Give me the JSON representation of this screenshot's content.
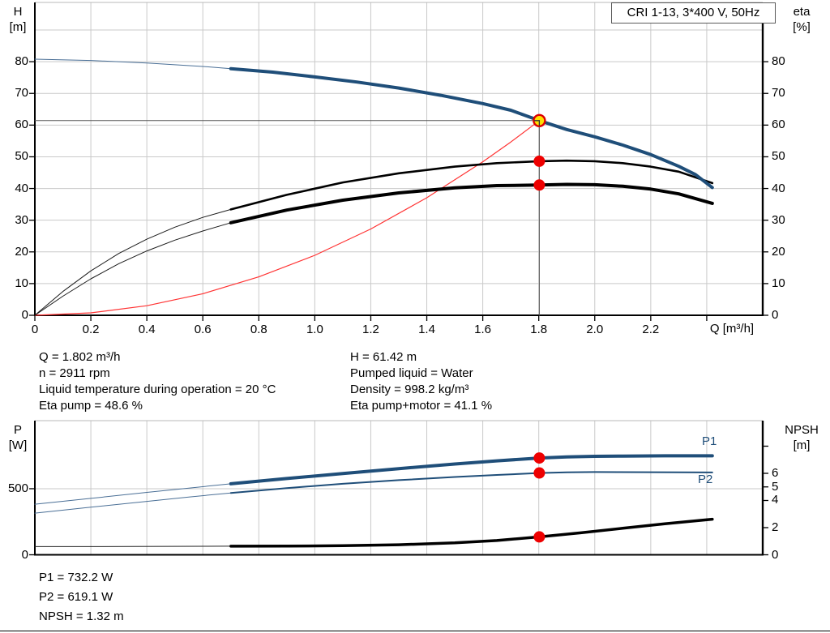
{
  "title_box": {
    "label": "CRI 1-13, 3*400 V, 50Hz"
  },
  "colors": {
    "curve_blue": "#1f4e79",
    "curve_blue_thin": "#4a6f96",
    "curve_black": "#000000",
    "system_curve_red": "#ff3333",
    "marker_dot": "#ee0000",
    "duty_point_fill": "#ffdf00",
    "duty_point_ring": "#dd0000",
    "crossline": "#555555",
    "grid": "#c9c9c9",
    "label_blue": "#1f4e79"
  },
  "annotations": {
    "operating_left": [
      "Q = 1.802 m³/h",
      "n = 2911 rpm",
      "Liquid temperature during operation = 20 °C",
      "Eta pump = 48.6 %"
    ],
    "operating_right": [
      "H = 61.42 m",
      "Pumped liquid = Water",
      "Density = 998.2 kg/m³",
      "Eta pump+motor = 41.1 %"
    ],
    "bottom": [
      "P1 = 732.2 W",
      "P2 = 619.1 W",
      "NPSH = 1.32 m"
    ]
  },
  "chart_data": [
    {
      "type": "line",
      "title": "CRI 1-13, 3*400 V, 50Hz",
      "x_axis": {
        "label": "Q [m³/h]",
        "min": 0,
        "max": 2.6,
        "ticks": [
          {
            "value": 0,
            "label": "0"
          },
          {
            "value": 0.2,
            "label": "0.2"
          },
          {
            "value": 0.4,
            "label": "0.4"
          },
          {
            "value": 0.6,
            "label": "0.6"
          },
          {
            "value": 0.8,
            "label": "0.8"
          },
          {
            "value": 1.0,
            "label": "1.0"
          },
          {
            "value": 1.2,
            "label": "1.2"
          },
          {
            "value": 1.4,
            "label": "1.4"
          },
          {
            "value": 1.6,
            "label": "1.6"
          },
          {
            "value": 1.8,
            "label": "1.8"
          },
          {
            "value": 2.0,
            "label": "2.0"
          },
          {
            "value": 2.2,
            "label": "2.2"
          },
          {
            "value": 2.4,
            "label": ""
          }
        ],
        "grid_values": [
          0.2,
          0.4,
          0.6,
          0.8,
          1.0,
          1.2,
          1.4,
          1.6,
          1.8,
          2.0,
          2.2,
          2.4
        ]
      },
      "y_axis_left": {
        "label": "H",
        "unit": "[m]",
        "min": 0,
        "max": 98.7,
        "ticks": [
          {
            "value": 0,
            "label": "0"
          },
          {
            "value": 10,
            "label": "10"
          },
          {
            "value": 20,
            "label": "20"
          },
          {
            "value": 30,
            "label": "30"
          },
          {
            "value": 40,
            "label": "40"
          },
          {
            "value": 50,
            "label": "50"
          },
          {
            "value": 60,
            "label": "60"
          },
          {
            "value": 70,
            "label": "70"
          },
          {
            "value": 80,
            "label": "80"
          }
        ],
        "grid_values": [
          10,
          20,
          30,
          40,
          50,
          60,
          70,
          80,
          90
        ]
      },
      "y_axis_right": {
        "label": "eta",
        "unit": "[%]",
        "min": 0,
        "max": 98.7,
        "ticks": [
          {
            "value": 0,
            "label": "0"
          },
          {
            "value": 10,
            "label": "10"
          },
          {
            "value": 20,
            "label": "20"
          },
          {
            "value": 30,
            "label": "30"
          },
          {
            "value": 40,
            "label": "40"
          },
          {
            "value": 50,
            "label": "50"
          },
          {
            "value": 60,
            "label": "60"
          },
          {
            "value": 70,
            "label": "70"
          },
          {
            "value": 80,
            "label": "80"
          }
        ]
      },
      "duty_point": {
        "Q": 1.802,
        "H": 61.42
      },
      "series": [
        {
          "name": "h-crossline",
          "color": "#555555",
          "width": 1,
          "axis": "left",
          "points": [
            [
              0,
              61.42
            ],
            [
              1.802,
              61.42
            ]
          ]
        },
        {
          "name": "q-crossline",
          "color": "#555555",
          "width": 1,
          "axis": "left",
          "points": [
            [
              1.802,
              0
            ],
            [
              1.802,
              61.42
            ]
          ]
        },
        {
          "name": "system-curve",
          "color": "#ff3333",
          "width": 1.2,
          "axis": "left",
          "points": [
            [
              0,
              0
            ],
            [
              0.2,
              0.76
            ],
            [
              0.4,
              3.03
            ],
            [
              0.6,
              6.81
            ],
            [
              0.8,
              12.11
            ],
            [
              1.0,
              18.92
            ],
            [
              1.2,
              27.24
            ],
            [
              1.4,
              37.08
            ],
            [
              1.6,
              48.43
            ],
            [
              1.7,
              54.68
            ],
            [
              1.802,
              61.42
            ]
          ]
        },
        {
          "name": "qh-curve-extension",
          "color": "#4a6f96",
          "width": 1,
          "axis": "left",
          "points": [
            [
              0,
              80.8
            ],
            [
              0.2,
              80.4
            ],
            [
              0.4,
              79.6
            ],
            [
              0.6,
              78.5
            ],
            [
              0.7,
              77.8
            ]
          ]
        },
        {
          "name": "eta-pump-curve-extension",
          "color": "#1a1a1a",
          "width": 1,
          "axis": "left",
          "points": [
            [
              0,
              0
            ],
            [
              0.1,
              7.5
            ],
            [
              0.2,
              14
            ],
            [
              0.3,
              19.5
            ],
            [
              0.4,
              24
            ],
            [
              0.5,
              27.8
            ],
            [
              0.6,
              30.9
            ],
            [
              0.7,
              33.4
            ]
          ]
        },
        {
          "name": "eta-pump-motor-curve-extension",
          "color": "#1a1a1a",
          "width": 1,
          "axis": "left",
          "points": [
            [
              0,
              0
            ],
            [
              0.1,
              6
            ],
            [
              0.2,
              11.5
            ],
            [
              0.3,
              16.3
            ],
            [
              0.4,
              20.3
            ],
            [
              0.5,
              23.7
            ],
            [
              0.6,
              26.6
            ],
            [
              0.7,
              29.2
            ]
          ]
        },
        {
          "name": "eta-pump-curve",
          "color": "#000000",
          "width": 2.6,
          "axis": "left",
          "points": [
            [
              0.7,
              33.4
            ],
            [
              0.9,
              38.0
            ],
            [
              1.1,
              41.9
            ],
            [
              1.3,
              44.8
            ],
            [
              1.5,
              46.9
            ],
            [
              1.65,
              48.0
            ],
            [
              1.802,
              48.6
            ],
            [
              1.9,
              48.8
            ],
            [
              2.0,
              48.6
            ],
            [
              2.1,
              48.0
            ],
            [
              2.2,
              46.9
            ],
            [
              2.3,
              45.3
            ],
            [
              2.42,
              41.7
            ]
          ]
        },
        {
          "name": "eta-pump-motor-curve",
          "color": "#000000",
          "width": 4,
          "axis": "left",
          "points": [
            [
              0.7,
              29.2
            ],
            [
              0.9,
              33.2
            ],
            [
              1.1,
              36.3
            ],
            [
              1.3,
              38.6
            ],
            [
              1.5,
              40.2
            ],
            [
              1.65,
              40.9
            ],
            [
              1.802,
              41.1
            ],
            [
              1.9,
              41.3
            ],
            [
              2.0,
              41.2
            ],
            [
              2.1,
              40.7
            ],
            [
              2.2,
              39.8
            ],
            [
              2.3,
              38.3
            ],
            [
              2.42,
              35.3
            ]
          ]
        },
        {
          "name": "qh-curve",
          "color": "#1f4e79",
          "width": 4,
          "axis": "left",
          "points": [
            [
              0.7,
              77.8
            ],
            [
              0.85,
              76.7
            ],
            [
              1.0,
              75.2
            ],
            [
              1.15,
              73.6
            ],
            [
              1.3,
              71.7
            ],
            [
              1.45,
              69.4
            ],
            [
              1.6,
              66.8
            ],
            [
              1.7,
              64.7
            ],
            [
              1.802,
              61.42
            ],
            [
              1.9,
              58.6
            ],
            [
              2.0,
              56.3
            ],
            [
              2.1,
              53.7
            ],
            [
              2.2,
              50.7
            ],
            [
              2.3,
              47.0
            ],
            [
              2.36,
              44.4
            ],
            [
              2.42,
              40.3
            ]
          ]
        }
      ],
      "markers": [
        {
          "type": "dot",
          "x": 1.802,
          "y": 48.6,
          "axis": "left"
        },
        {
          "type": "dot",
          "x": 1.802,
          "y": 41.1,
          "axis": "left"
        },
        {
          "type": "duty",
          "x": 1.802,
          "y": 61.42,
          "axis": "left"
        }
      ]
    },
    {
      "type": "line",
      "x_axis": {
        "label": "",
        "min": 0,
        "max": 2.6,
        "ticks": [],
        "grid_values": [
          0.2,
          0.4,
          0.6,
          0.8,
          1.0,
          1.2,
          1.4,
          1.6,
          1.8,
          2.0,
          2.2,
          2.4
        ]
      },
      "y_axis_left": {
        "label": "P",
        "unit": "[W]",
        "min": 0,
        "max": 1015,
        "ticks": [
          {
            "value": 500,
            "label": "500"
          },
          {
            "value": 0,
            "label": "0"
          }
        ],
        "grid_values": [
          500
        ]
      },
      "y_axis_right": {
        "label": "NPSH",
        "unit": "[m]",
        "min": 0,
        "max": 9.88,
        "ticks": [
          {
            "value": 0,
            "label": "0"
          },
          {
            "value": 2,
            "label": "2"
          },
          {
            "value": 4,
            "label": "4"
          },
          {
            "value": 5,
            "label": "5"
          },
          {
            "value": 6,
            "label": "6"
          },
          {
            "value": 8,
            "label": ""
          }
        ]
      },
      "curve_labels": [
        {
          "text": "P1"
        },
        {
          "text": "P2"
        }
      ],
      "series": [
        {
          "name": "p1-curve-extension",
          "color": "#4a6f96",
          "width": 1,
          "axis": "left",
          "points": [
            [
              0,
              383
            ],
            [
              0.2,
              427
            ],
            [
              0.4,
              472
            ],
            [
              0.55,
              505
            ],
            [
              0.7,
              537
            ]
          ]
        },
        {
          "name": "p2-curve-extension",
          "color": "#4a6f96",
          "width": 1,
          "axis": "left",
          "points": [
            [
              0,
              315
            ],
            [
              0.2,
              360
            ],
            [
              0.4,
              404
            ],
            [
              0.55,
              437
            ],
            [
              0.7,
              468
            ]
          ]
        },
        {
          "name": "npsh-curve-extension",
          "color": "#222222",
          "width": 1,
          "axis": "right",
          "points": [
            [
              0,
              0.6
            ],
            [
              0.35,
              0.61
            ],
            [
              0.7,
              0.63
            ]
          ]
        },
        {
          "name": "p1-curve",
          "color": "#1f4e79",
          "width": 4,
          "axis": "left",
          "points": [
            [
              0.7,
              537
            ],
            [
              0.9,
              577
            ],
            [
              1.1,
              615
            ],
            [
              1.3,
              652
            ],
            [
              1.5,
              687
            ],
            [
              1.65,
              711
            ],
            [
              1.802,
              732
            ],
            [
              1.9,
              740
            ],
            [
              2.0,
              745
            ],
            [
              2.1,
              747
            ],
            [
              2.25,
              749
            ],
            [
              2.42,
              749
            ]
          ]
        },
        {
          "name": "p2-curve",
          "color": "#1f4e79",
          "width": 2,
          "axis": "left",
          "points": [
            [
              0.7,
              468
            ],
            [
              0.9,
              505
            ],
            [
              1.1,
              537
            ],
            [
              1.3,
              565
            ],
            [
              1.5,
              589
            ],
            [
              1.65,
              604
            ],
            [
              1.802,
              619
            ],
            [
              1.9,
              624
            ],
            [
              2.0,
              626
            ],
            [
              2.2,
              625
            ],
            [
              2.42,
              623
            ]
          ]
        },
        {
          "name": "npsh-curve",
          "color": "#000000",
          "width": 3.5,
          "axis": "right",
          "points": [
            [
              0.7,
              0.63
            ],
            [
              0.9,
              0.64
            ],
            [
              1.1,
              0.67
            ],
            [
              1.3,
              0.74
            ],
            [
              1.5,
              0.88
            ],
            [
              1.65,
              1.05
            ],
            [
              1.802,
              1.32
            ],
            [
              1.95,
              1.62
            ],
            [
              2.1,
              1.95
            ],
            [
              2.25,
              2.28
            ],
            [
              2.42,
              2.62
            ]
          ]
        }
      ],
      "markers": [
        {
          "type": "dot",
          "x": 1.802,
          "y": 732.2,
          "axis": "left"
        },
        {
          "type": "dot",
          "x": 1.802,
          "y": 619.1,
          "axis": "left"
        },
        {
          "type": "dot",
          "x": 1.802,
          "y": 1.32,
          "axis": "right"
        }
      ]
    }
  ]
}
